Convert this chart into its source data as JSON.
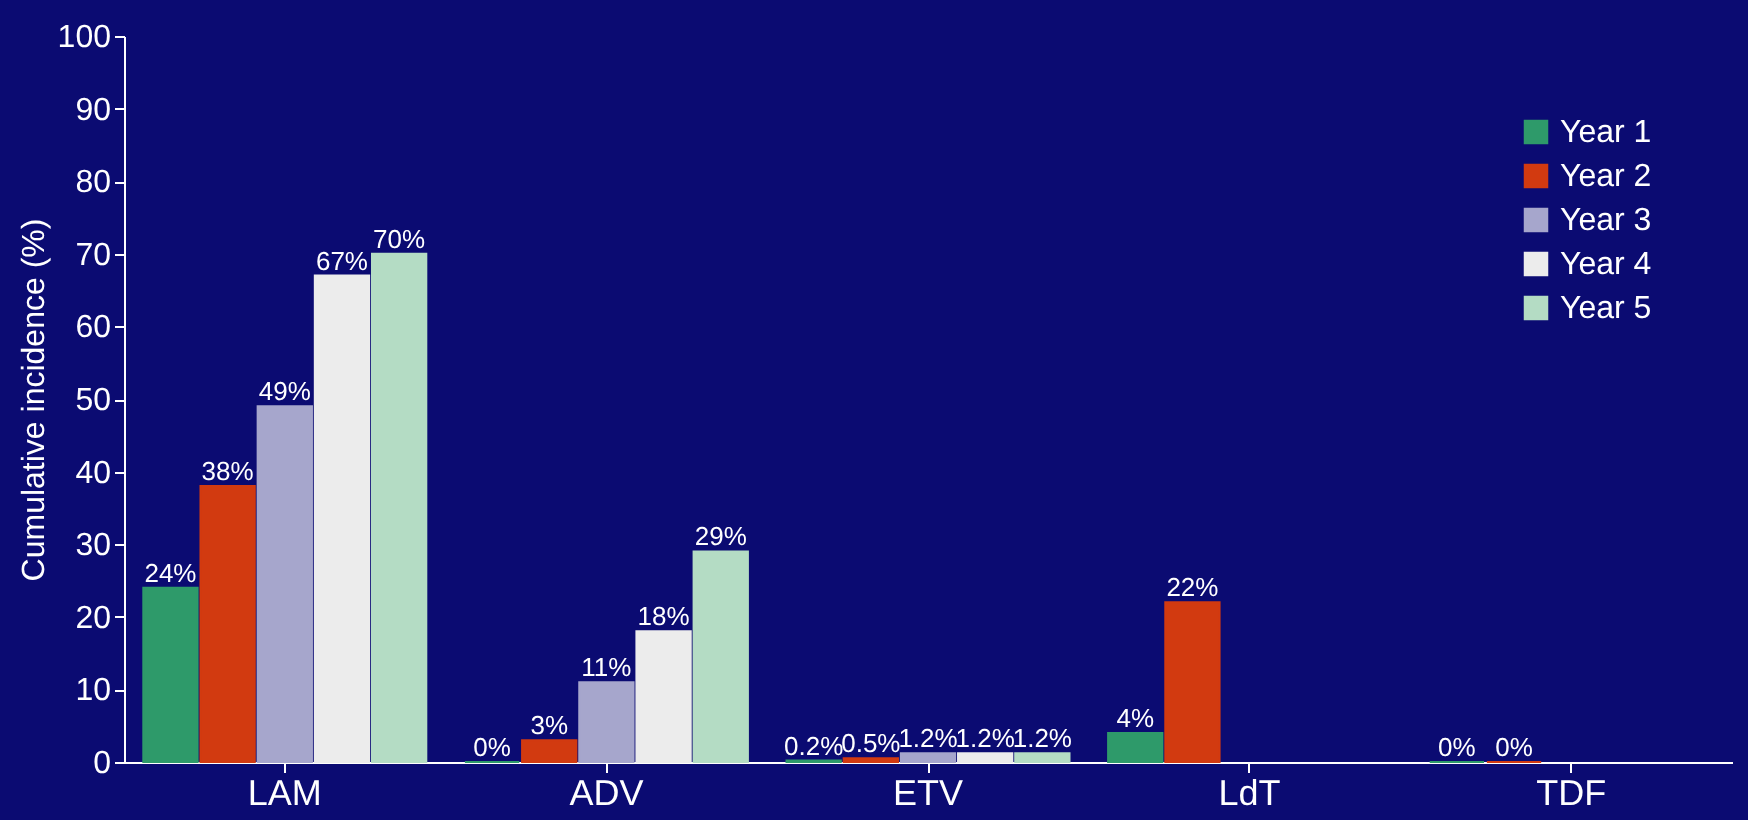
{
  "chart_data": {
    "type": "bar",
    "ylabel": "Cumulative incidence (%)",
    "categories": [
      "LAM",
      "ADV",
      "ETV",
      "LdT",
      "TDF"
    ],
    "series": [
      {
        "name": "Year 1",
        "color": "#2e9a6a",
        "values": [
          24,
          0,
          0.2,
          4,
          0
        ],
        "value_labels": [
          "24%",
          "0%",
          "0.2%",
          "4%",
          "0%"
        ]
      },
      {
        "name": "Year 2",
        "color": "#d23a10",
        "values": [
          38,
          3,
          0.5,
          22,
          0
        ],
        "value_labels": [
          "38%",
          "3%",
          "0.5%",
          "22%",
          "0%"
        ]
      },
      {
        "name": "Year 3",
        "color": "#a6a6cc",
        "values": [
          49,
          11,
          1.2,
          null,
          null
        ],
        "value_labels": [
          "49%",
          "11%",
          "1.2%",
          null,
          null
        ]
      },
      {
        "name": "Year 4",
        "color": "#ececec",
        "values": [
          67,
          18,
          1.2,
          null,
          null
        ],
        "value_labels": [
          "67%",
          "18%",
          "1.2%",
          null,
          null
        ]
      },
      {
        "name": "Year 5",
        "color": "#b4dcc4",
        "values": [
          70,
          29,
          1.2,
          null,
          null
        ],
        "value_labels": [
          "70%",
          "29%",
          "1.2%",
          null,
          null
        ]
      }
    ],
    "ylim": [
      0,
      100
    ],
    "yticks": [
      0,
      10,
      20,
      30,
      40,
      50,
      60,
      70,
      80,
      90,
      100
    ],
    "grid": false,
    "legend": "top right"
  }
}
